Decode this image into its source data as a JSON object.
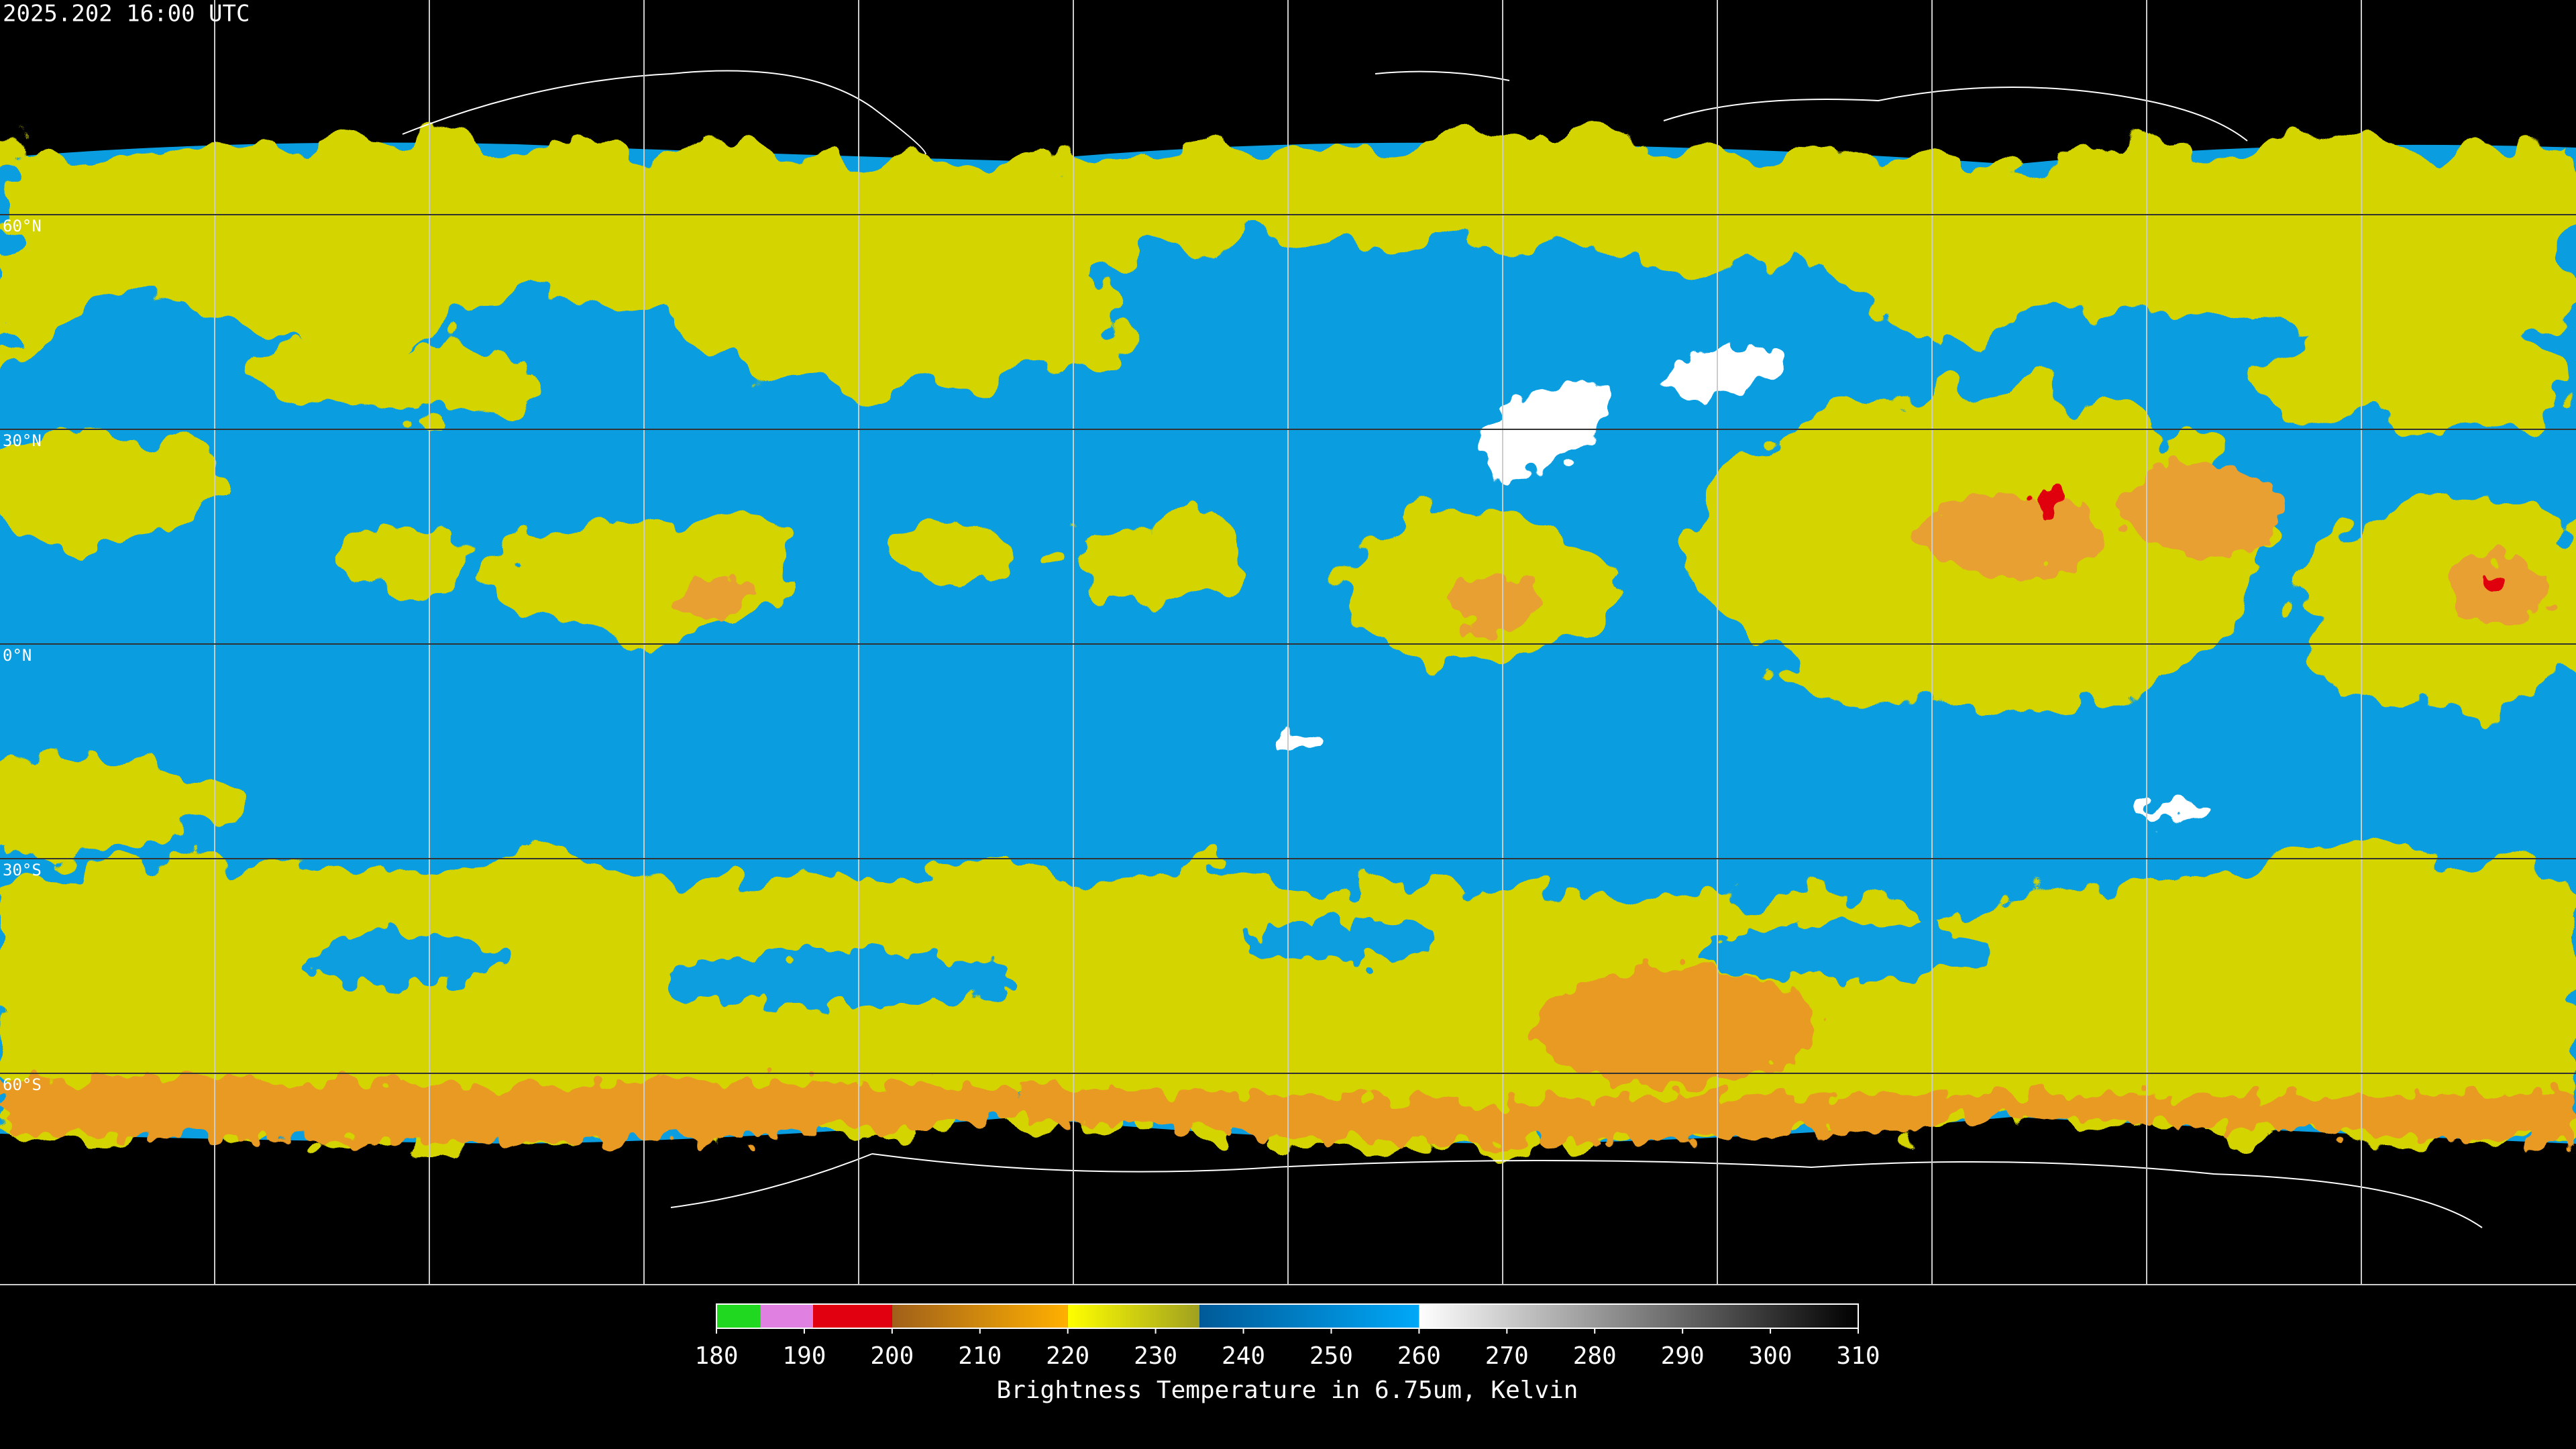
{
  "header": {
    "timestamp": "2025.202 16:00 UTC"
  },
  "map": {
    "lat_lines": [
      {
        "value": 60,
        "label": "60°N"
      },
      {
        "value": 30,
        "label": "30°N"
      },
      {
        "value": 0,
        "label": "0°N"
      },
      {
        "value": -30,
        "label": "30°S"
      },
      {
        "value": -60,
        "label": "60°S"
      }
    ]
  },
  "colorbar": {
    "range": [
      180,
      310
    ],
    "ticks": [
      180,
      190,
      200,
      210,
      220,
      230,
      240,
      250,
      260,
      270,
      280,
      290,
      300,
      310
    ],
    "label": "Brightness Temperature in 6.75um, Kelvin",
    "segments": [
      {
        "from": 180,
        "to": 185,
        "colors": [
          "#1fd81f",
          "#1fd81f"
        ]
      },
      {
        "from": 185,
        "to": 191,
        "colors": [
          "#e080e0",
          "#e080e0"
        ]
      },
      {
        "from": 191,
        "to": 200,
        "colors": [
          "#e00010",
          "#e00010"
        ]
      },
      {
        "from": 200,
        "to": 220,
        "colors": [
          "#a0601a",
          "#ffb000"
        ]
      },
      {
        "from": 220,
        "to": 235,
        "colors": [
          "#ffff00",
          "#a0a020"
        ]
      },
      {
        "from": 235,
        "to": 260,
        "colors": [
          "#005a98",
          "#00a8f8"
        ]
      },
      {
        "from": 260,
        "to": 310,
        "colors": [
          "#ffffff",
          "#000000"
        ]
      }
    ]
  }
}
